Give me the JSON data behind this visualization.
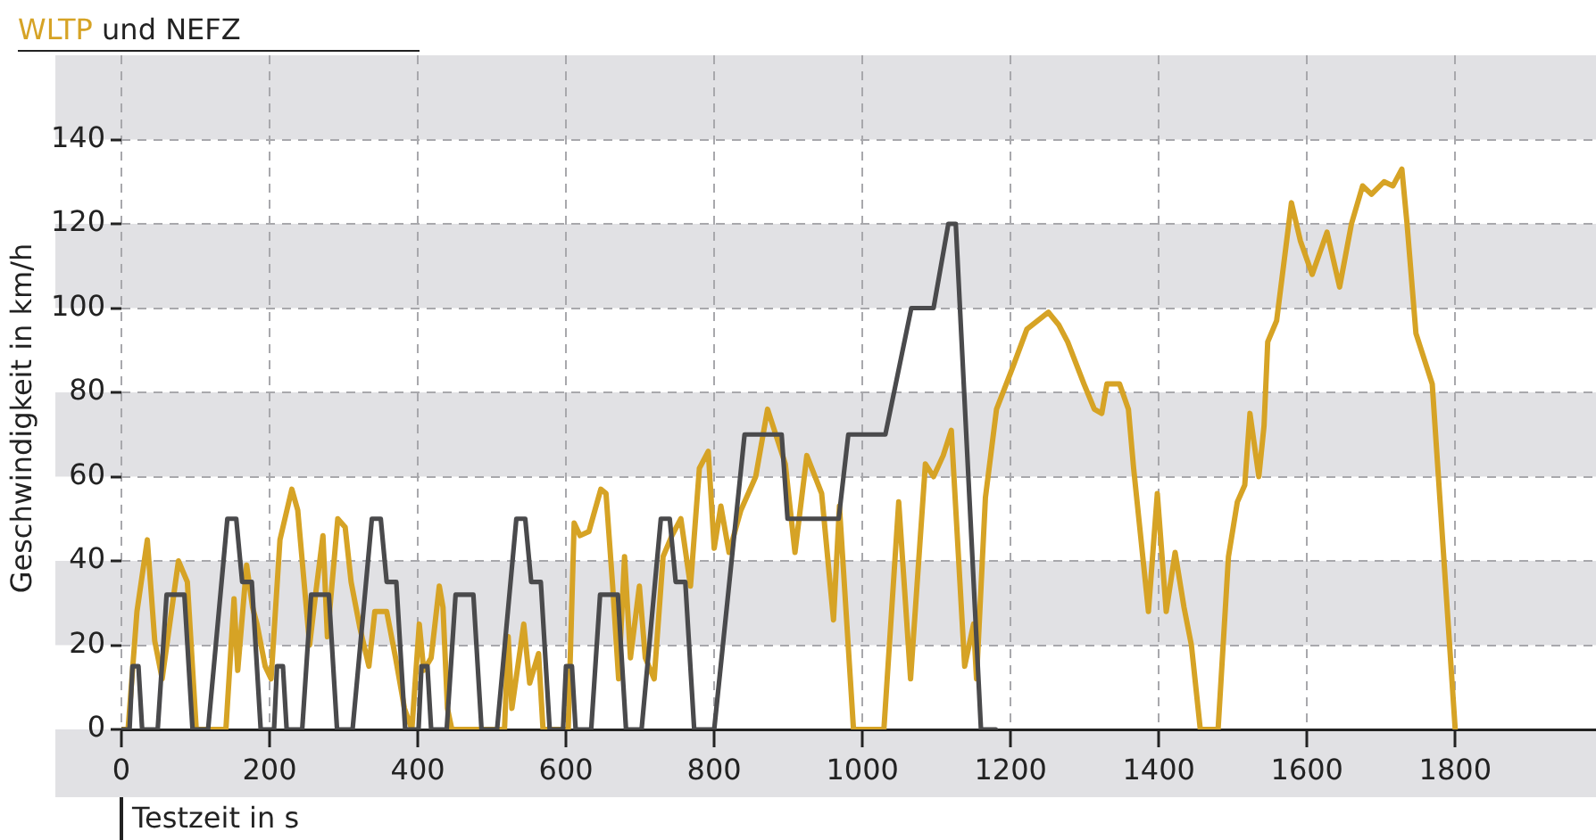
{
  "chart_data": {
    "type": "line",
    "title": "WLTP und NEFZ",
    "xlabel": "Testzeit in s",
    "ylabel": "Geschwindigkeit in km/h",
    "xlim": [
      0,
      1990
    ],
    "xticks": [
      0,
      200,
      400,
      600,
      800,
      1000,
      1200,
      1400,
      1600,
      1800
    ],
    "ylim": [
      0,
      160
    ],
    "yticks": [
      0,
      20,
      40,
      60,
      80,
      100,
      120,
      140
    ],
    "grid": true,
    "series": [
      {
        "color": "#4a4a4c",
        "x": [
          0,
          11,
          15,
          23,
          28,
          49,
          61,
          85,
          96,
          117,
          143,
          155,
          163,
          176,
          188,
          195,
          206,
          210,
          218,
          223,
          244,
          256,
          280,
          291,
          312,
          338,
          350,
          358,
          371,
          383,
          390,
          401,
          405,
          413,
          418,
          439,
          451,
          475,
          486,
          507,
          533,
          545,
          553,
          566,
          578,
          585,
          596,
          600,
          608,
          613,
          634,
          646,
          670,
          681,
          702,
          728,
          740,
          748,
          761,
          773,
          800,
          841,
          891,
          899,
          968,
          981,
          1031,
          1066,
          1096,
          1116,
          1126,
          1160,
          1180
        ],
        "values": [
          0,
          0,
          15,
          15,
          0,
          0,
          32,
          32,
          0,
          0,
          50,
          50,
          35,
          35,
          0,
          0,
          0,
          15,
          15,
          0,
          0,
          32,
          32,
          0,
          0,
          50,
          50,
          35,
          35,
          0,
          0,
          0,
          15,
          15,
          0,
          0,
          32,
          32,
          0,
          0,
          50,
          50,
          35,
          35,
          0,
          0,
          0,
          15,
          15,
          0,
          0,
          32,
          32,
          0,
          0,
          50,
          50,
          35,
          35,
          0,
          0,
          70,
          70,
          50,
          50,
          70,
          70,
          100,
          100,
          120,
          120,
          0,
          0
        ]
      },
      {
        "color": "#d6a325",
        "x": [
          0,
          9,
          21,
          35,
          45,
          55,
          77,
          89,
          101,
          141,
          152,
          157,
          169,
          177,
          183,
          194,
          202,
          214,
          230,
          238,
          254,
          262,
          272,
          278,
          292,
          302,
          310,
          322,
          334,
          342,
          358,
          370,
          382,
          392,
          402,
          408,
          418,
          429,
          434,
          440,
          446,
          517,
          522,
          527,
          543,
          551,
          563,
          569,
          603,
          611,
          619,
          631,
          647,
          654,
          663,
          671,
          679,
          687,
          699,
          707,
          719,
          731,
          743,
          755,
          768,
          780,
          792,
          800,
          809,
          820,
          836,
          856,
          872,
          896,
          909,
          925,
          945,
          961,
          969,
          988,
          1029,
          1049,
          1065,
          1085,
          1096,
          1109,
          1120,
          1138,
          1150,
          1154,
          1166,
          1181,
          1203,
          1222,
          1251,
          1265,
          1277,
          1299,
          1313,
          1323,
          1330,
          1347,
          1359,
          1366,
          1386,
          1398,
          1410,
          1422,
          1434,
          1444,
          1456,
          1480,
          1494,
          1506,
          1516,
          1523,
          1535,
          1542,
          1547,
          1559,
          1579,
          1591,
          1607,
          1627,
          1644,
          1660,
          1675,
          1687,
          1704,
          1716,
          1728,
          1735,
          1747,
          1769,
          1800
        ],
        "values": [
          0,
          0,
          28,
          45,
          21,
          12,
          40,
          35,
          0,
          0,
          31,
          14,
          39,
          29,
          25,
          15,
          12,
          45,
          57,
          52,
          20,
          32,
          46,
          22,
          50,
          48,
          35,
          24,
          15,
          28,
          28,
          17,
          5,
          0,
          25,
          14,
          17,
          34,
          29,
          5,
          0,
          0,
          22,
          5,
          25,
          11,
          18,
          0,
          0,
          49,
          46,
          47,
          57,
          56,
          34,
          12,
          41,
          17,
          34,
          17,
          12,
          41,
          46,
          50,
          34,
          62,
          66,
          43,
          53,
          42,
          52,
          60,
          76,
          63,
          42,
          65,
          56,
          26,
          53,
          0,
          0,
          54,
          12,
          63,
          60,
          65,
          71,
          15,
          25,
          12,
          55,
          76,
          86,
          95,
          99,
          96,
          92,
          82,
          76,
          75,
          82,
          82,
          76,
          62,
          28,
          56,
          28,
          42,
          29,
          20,
          0,
          0,
          41,
          54,
          58,
          75,
          60,
          72,
          92,
          97,
          125,
          116,
          108,
          118,
          105,
          120,
          129,
          127,
          130,
          129,
          133,
          120,
          94,
          82,
          0
        ]
      }
    ]
  }
}
